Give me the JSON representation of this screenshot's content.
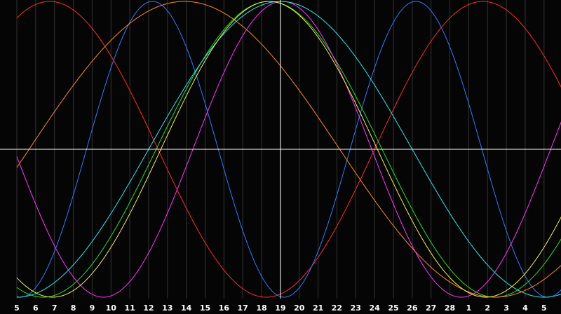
{
  "chart_data": {
    "type": "line",
    "background": "#050505",
    "grid": true,
    "legend": "none",
    "x_ticks": [
      "5",
      "6",
      "7",
      "8",
      "9",
      "10",
      "11",
      "12",
      "13",
      "14",
      "15",
      "16",
      "17",
      "18",
      "19",
      "20",
      "21",
      "22",
      "23",
      "24",
      "25",
      "26",
      "27",
      "28",
      "1",
      "2",
      "3",
      "4",
      "5"
    ],
    "x_range": [
      0,
      29.7
    ],
    "y_range": [
      -1,
      1
    ],
    "cursor": {
      "x": 14.0,
      "y": 0
    },
    "series": [
      {
        "color": "#ff2a2a",
        "amplitude": 1,
        "period": 23,
        "phase": -4.0
      },
      {
        "color": "#2f7cff",
        "amplitude": 1,
        "period": 14,
        "phase": 3.7
      },
      {
        "color": "#22e02a",
        "amplitude": 1,
        "period": 24,
        "phase": 7.4
      },
      {
        "color": "#ff8a1a",
        "amplitude": 1,
        "period": 33,
        "phase": 0.65
      },
      {
        "color": "#ff33ff",
        "amplitude": 1,
        "period": 19,
        "phase": 9.35
      },
      {
        "color": "#2ce8ee",
        "amplitude": 1,
        "period": 28,
        "phase": 7.0
      },
      {
        "color": "#f2f24a",
        "amplitude": 1,
        "period": 23,
        "phase": 7.65
      }
    ]
  }
}
